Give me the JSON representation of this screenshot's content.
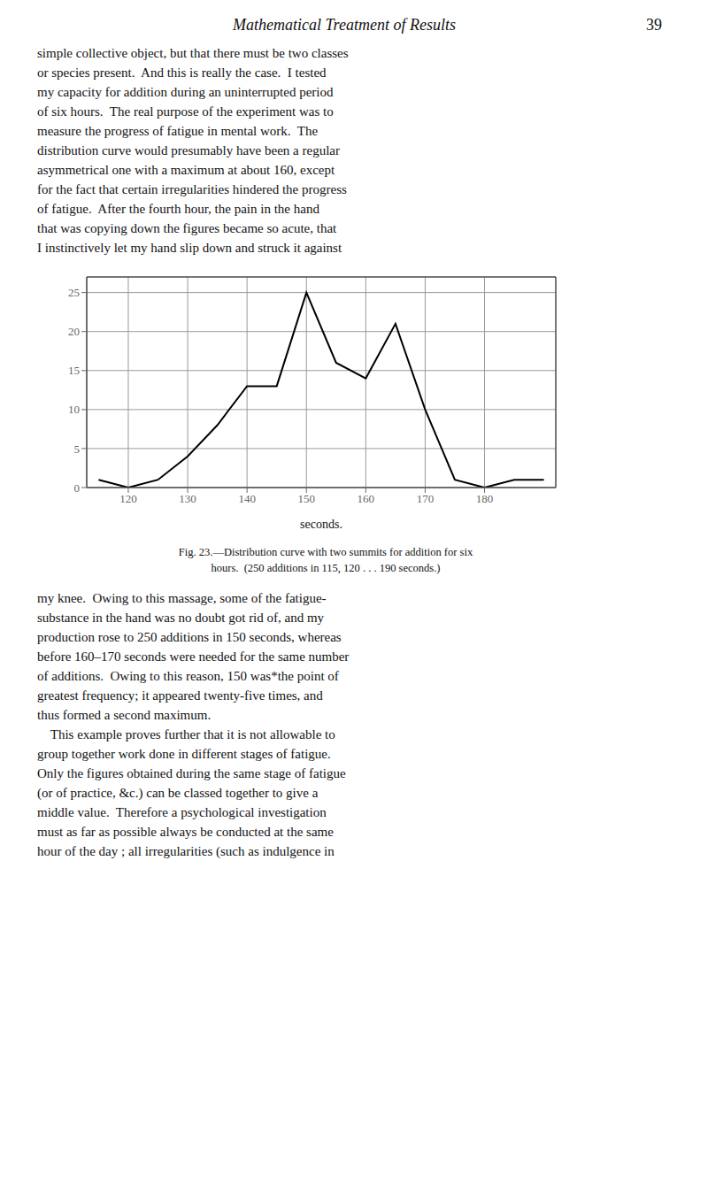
{
  "chart_data": {
    "type": "line",
    "title": "Mathematical Treatment of Results",
    "annotations": [
      [
        "39"
      ],
      [
        "simple collective object, but that there must be two classes",
        "or species present.  And this is really the case.  I tested",
        "my capacity for addition during an uninterrupted period",
        "of six hours.  The real purpose of the experiment was to",
        "measure the progress of fatigue in mental work.  The",
        "distribution curve would presumably have been a regular",
        "asymmetrical one with a maximum at about 160, except",
        "for the fact that certain irregularities hindered the progress",
        "of fatigue.  After the fourth hour, the pain in the hand",
        "that was copying down the figures became so acute, that",
        "I instinctively let my hand slip down and struck it against"
      ],
      [
        "Fig. 23.—Distribution curve with two summits for addition for six",
        "hours.  (250 additions in 115, 120 . . . 190 seconds.)"
      ],
      [
        "my knee.  Owing to this massage, some of the fatigue-",
        "substance in the hand was no doubt got rid of, and my",
        "production rose to 250 additions in 150 seconds, whereas",
        "before 160–170 seconds were needed for the same number",
        "of additions.  Owing to this reason, 150 was*the point of",
        "greatest frequency; it appeared twenty-five times, and",
        "thus formed a second maximum.",
        "    This example proves further that it is not allowable to",
        "group together work done in different stages of fatigue.",
        "Only the figures obtained during the same stage of fatigue",
        "(or of practice, &c.) can be classed together to give a",
        "middle value.  Therefore a psychological investigation",
        "must as far as possible always be conducted at the same",
        "hour of the day ; all irregularities (such as indulgence in"
      ]
    ],
    "x_label": "seconds.",
    "x": [
      115,
      120,
      125,
      130,
      135,
      140,
      145,
      150,
      155,
      160,
      165,
      170,
      175,
      180,
      185,
      190
    ],
    "values": [
      1,
      0,
      1,
      4,
      8,
      13,
      13,
      25,
      16,
      14,
      21,
      10,
      1,
      0,
      1,
      1
    ],
    "color": "#000000",
    "xlim": [
      113,
      192
    ],
    "xticks": [
      120,
      130,
      140,
      150,
      160,
      170,
      180
    ],
    "ylim": [
      0,
      27
    ],
    "yticks": [
      0,
      5,
      10,
      15,
      20,
      25
    ],
    "grid": true
  }
}
